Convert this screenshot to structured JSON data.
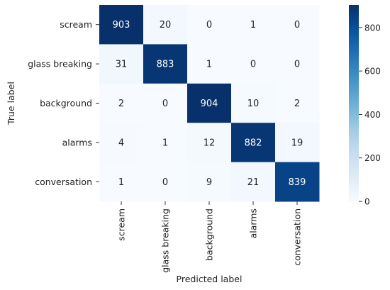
{
  "chart_data": {
    "type": "heatmap",
    "title": "",
    "xlabel": "Predicted label",
    "ylabel": "True label",
    "x_categories": [
      "scream",
      "glass breaking",
      "background",
      "alarms",
      "conversation"
    ],
    "y_categories": [
      "scream",
      "glass breaking",
      "background",
      "alarms",
      "conversation"
    ],
    "values": [
      [
        903,
        20,
        0,
        1,
        0
      ],
      [
        31,
        883,
        1,
        0,
        0
      ],
      [
        2,
        0,
        904,
        10,
        2
      ],
      [
        4,
        1,
        12,
        882,
        19
      ],
      [
        1,
        0,
        9,
        21,
        839
      ]
    ],
    "colorbar": {
      "range": [
        0,
        904
      ],
      "ticks": [
        0,
        200,
        400,
        600,
        800
      ]
    },
    "colormap": [
      "#f7fbff",
      "#deebf7",
      "#c6dbef",
      "#9ecae1",
      "#6baed6",
      "#4292c6",
      "#2171b5",
      "#08519c",
      "#08306b"
    ],
    "text_colors": {
      "dark": "#262626",
      "light": "#ffffff"
    }
  }
}
